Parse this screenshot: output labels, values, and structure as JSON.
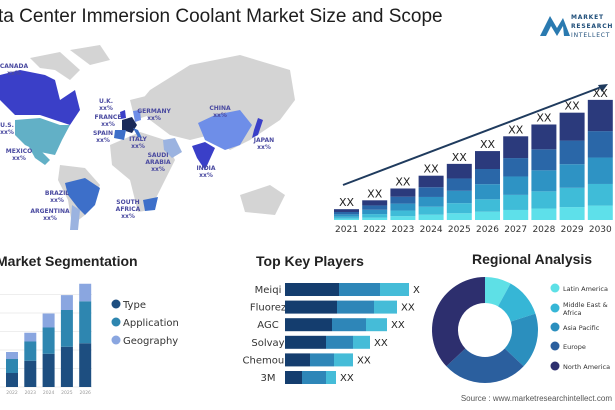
{
  "title": "ta Center Immersion Coolant Market Size and Scope",
  "logo": {
    "text": [
      "MARKET",
      "RESEARCH",
      "INTELLECT"
    ],
    "color": "#1f4e79"
  },
  "map": {
    "countries": [
      {
        "name": "CANADA",
        "value": "xx%",
        "color": "#3a3fc8"
      },
      {
        "name": "U.S.",
        "value": "xx%",
        "color": "#62b0c6"
      },
      {
        "name": "MEXICO",
        "value": "xx%",
        "color": "#62b0c6"
      },
      {
        "name": "BRAZIL",
        "value": "xx%",
        "color": "#3d6fc9"
      },
      {
        "name": "ARGENTINA",
        "value": "xx%",
        "color": "#9bb3e0"
      },
      {
        "name": "U.K.",
        "value": "xx%",
        "color": "#3a3fc8"
      },
      {
        "name": "FRANCE",
        "value": "xx%",
        "color": "#1a2a5a"
      },
      {
        "name": "SPAIN",
        "value": "xx%",
        "color": "#3d6fc9"
      },
      {
        "name": "GERMANY",
        "value": "xx%",
        "color": "#6e8ee8"
      },
      {
        "name": "ITALY",
        "value": "xx%",
        "color": "#3d6fc9"
      },
      {
        "name": "SAUDI ARABIA",
        "value": "xx%",
        "color": "#9bb3e0"
      },
      {
        "name": "SOUTH AFRICA",
        "value": "xx%",
        "color": "#3d6fc9"
      },
      {
        "name": "CHINA",
        "value": "xx%",
        "color": "#6e8ee8"
      },
      {
        "name": "INDIA",
        "value": "xx%",
        "color": "#3a3fc8"
      },
      {
        "name": "JAPAN",
        "value": "xx%",
        "color": "#3a3fc8"
      }
    ],
    "land_color": "#d4d4d4",
    "label_color": "#4a4aa0"
  },
  "chart_data": [
    {
      "type": "bar",
      "stacked": true,
      "categories": [
        "2021",
        "2022",
        "2023",
        "2024",
        "2025",
        "2026",
        "2027",
        "2028",
        "2029",
        "2030"
      ],
      "totals": [
        11,
        20,
        32,
        45,
        57,
        70,
        85,
        97,
        109,
        122
      ],
      "data_labels": [
        "XX",
        "XX",
        "XX",
        "XX",
        "XX",
        "XX",
        "XX",
        "XX",
        "XX",
        "XX"
      ],
      "segment_colors": [
        "#5ee0ea",
        "#3fbcd8",
        "#2e93c4",
        "#2a67a8",
        "#2b3a7c"
      ],
      "trend_arrow": true
    },
    {
      "type": "bar",
      "stacked": true,
      "title": "Market Segmentation",
      "categories": [
        "2022",
        "2023",
        "2024",
        "2025",
        "2026"
      ],
      "series": [
        {
          "name": "Type",
          "values": [
            16,
            30,
            38,
            46,
            50
          ],
          "color": "#1d4e80"
        },
        {
          "name": "Application",
          "values": [
            16,
            22,
            30,
            42,
            48
          ],
          "color": "#2e86b0"
        },
        {
          "name": "Geography",
          "values": [
            8,
            10,
            16,
            17,
            20
          ],
          "color": "#8aa6e0"
        }
      ],
      "legend": "right"
    },
    {
      "type": "bar",
      "orientation": "horizontal",
      "stacked": true,
      "title": "Top Key Players",
      "categories": [
        "Meiqi",
        "Fluorez",
        "AGC",
        "Solvay",
        "Chemours",
        "3M"
      ],
      "series": [
        {
          "values": [
            54,
            52,
            47,
            41,
            25,
            17
          ],
          "color": "#143d6e"
        },
        {
          "values": [
            41,
            37,
            34,
            27,
            24,
            24
          ],
          "color": "#2e86b8"
        },
        {
          "values": [
            29,
            23,
            21,
            17,
            19,
            10
          ],
          "color": "#45bcd8"
        }
      ],
      "data_labels": [
        "XX",
        "XX",
        "XX",
        "XX",
        "XX",
        "XX"
      ]
    },
    {
      "type": "pie",
      "donut": true,
      "title": "Regional Analysis",
      "slices": [
        {
          "name": "Latin America",
          "value": 8,
          "color": "#5ee0e6"
        },
        {
          "name": "Middle East & Africa",
          "value": 12,
          "color": "#36b6d6"
        },
        {
          "name": "Asia Pacific",
          "value": 17,
          "color": "#2b8fbe"
        },
        {
          "name": "Europe",
          "value": 26,
          "color": "#2b5f9e"
        },
        {
          "name": "North America",
          "value": 37,
          "color": "#2d2f6e"
        }
      ],
      "legend": "right"
    }
  ],
  "source": "Source : www.marketresearchintellect.com"
}
